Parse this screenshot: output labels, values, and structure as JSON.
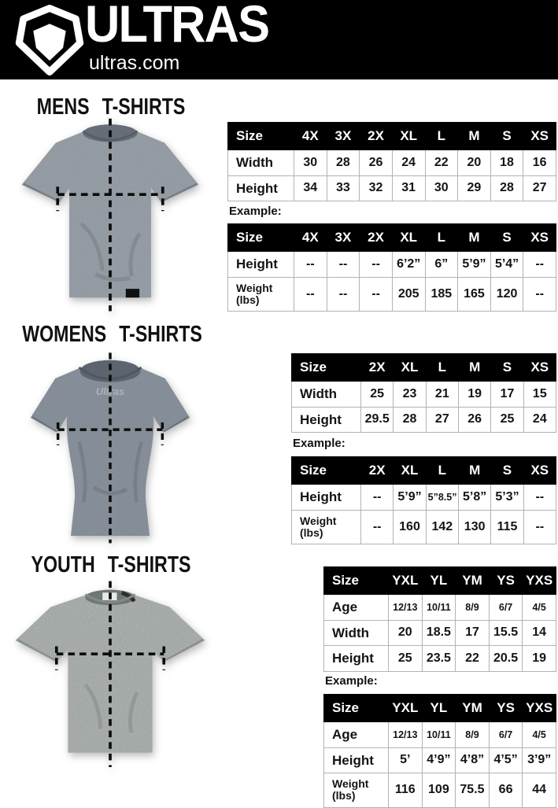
{
  "brand": {
    "name": "ULTRAS",
    "site": "ultras.com"
  },
  "colors": {
    "header_bg": "#000000",
    "table_header_bg": "#000000",
    "table_header_text": "#ffffff",
    "shirt_mens": "#8b939c",
    "shirt_womens": "#7d8691",
    "shirt_youth": "#9ba19e"
  },
  "sections": [
    {
      "id": "mens",
      "title": "MENS T-SHIRTS",
      "example_label": "Example:",
      "size_table": {
        "header": [
          "Size",
          "4X",
          "3X",
          "2X",
          "XL",
          "L",
          "M",
          "S",
          "XS"
        ],
        "rows": [
          {
            "label": "Width",
            "values": [
              "30",
              "28",
              "26",
              "24",
              "22",
              "20",
              "18",
              "16"
            ]
          },
          {
            "label": "Height",
            "values": [
              "34",
              "33",
              "32",
              "31",
              "30",
              "29",
              "28",
              "27"
            ]
          }
        ]
      },
      "example_table": {
        "header": [
          "Size",
          "4X",
          "3X",
          "2X",
          "XL",
          "L",
          "M",
          "S",
          "XS"
        ],
        "rows": [
          {
            "label": "Height",
            "values": [
              "--",
              "--",
              "--",
              "6’2”",
              "6”",
              "5’9”",
              "5’4”",
              "--"
            ]
          },
          {
            "label": "Weight (lbs)",
            "values": [
              "--",
              "--",
              "--",
              "205",
              "185",
              "165",
              "120",
              "--"
            ]
          }
        ]
      }
    },
    {
      "id": "womens",
      "title": "WOMENS T-SHIRTS",
      "example_label": "Example:",
      "size_table": {
        "header": [
          "Size",
          "2X",
          "XL",
          "L",
          "M",
          "S",
          "XS"
        ],
        "rows": [
          {
            "label": "Width",
            "values": [
              "25",
              "23",
              "21",
              "19",
              "17",
              "15"
            ]
          },
          {
            "label": "Height",
            "values": [
              "29.5",
              "28",
              "27",
              "26",
              "25",
              "24"
            ]
          }
        ]
      },
      "example_table": {
        "header": [
          "Size",
          "2X",
          "XL",
          "L",
          "M",
          "S",
          "XS"
        ],
        "rows": [
          {
            "label": "Height",
            "values": [
              "--",
              "5’9”",
              "5”8.5”",
              "5’8”",
              "5’3”",
              "--"
            ]
          },
          {
            "label": "Weight (lbs)",
            "values": [
              "--",
              "160",
              "142",
              "130",
              "115",
              "--"
            ]
          }
        ]
      }
    },
    {
      "id": "youth",
      "title": "YOUTH T-SHIRTS",
      "example_label": "Example:",
      "size_table": {
        "header": [
          "Size",
          "YXL",
          "YL",
          "YM",
          "YS",
          "YXS"
        ],
        "rows": [
          {
            "label": "Age",
            "values": [
              "12/13",
              "10/11",
              "8/9",
              "6/7",
              "4/5"
            ]
          },
          {
            "label": "Width",
            "values": [
              "20",
              "18.5",
              "17",
              "15.5",
              "14"
            ]
          },
          {
            "label": "Height",
            "values": [
              "25",
              "23.5",
              "22",
              "20.5",
              "19"
            ]
          }
        ]
      },
      "example_table": {
        "header": [
          "Size",
          "YXL",
          "YL",
          "YM",
          "YS",
          "YXS"
        ],
        "rows": [
          {
            "label": "Age",
            "values": [
              "12/13",
              "10/11",
              "8/9",
              "6/7",
              "4/5"
            ]
          },
          {
            "label": "Height",
            "values": [
              "5’",
              "4’9”",
              "4’8”",
              "4’5”",
              "3’9”"
            ]
          },
          {
            "label": "Weight (lbs)",
            "values": [
              "116",
              "109",
              "75.5",
              "66",
              "44"
            ]
          }
        ]
      }
    }
  ]
}
